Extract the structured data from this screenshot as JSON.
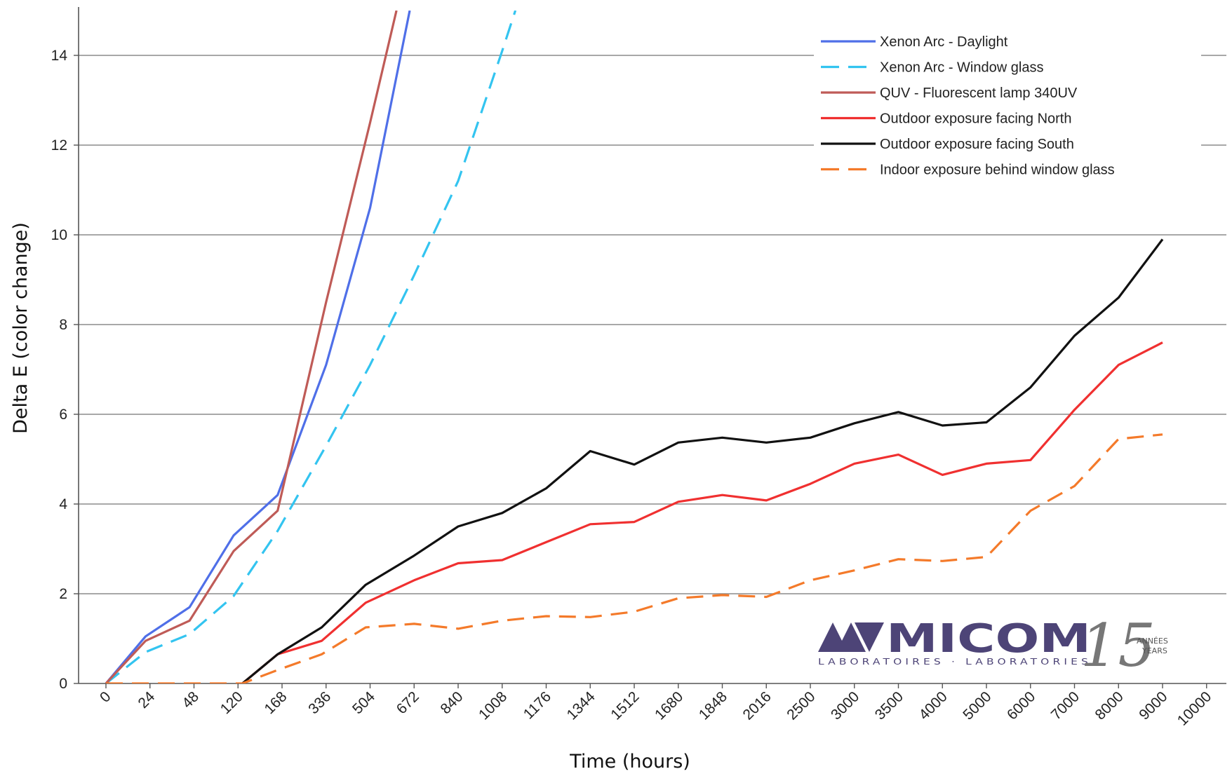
{
  "chart_data": {
    "type": "line",
    "title": "",
    "xlabel": "Time (hours)",
    "ylabel": "Delta E (color change)",
    "ylim": [
      0,
      15
    ],
    "yticks": [
      0,
      2,
      4,
      6,
      8,
      10,
      12,
      14
    ],
    "categories": [
      "0",
      "24",
      "48",
      "120",
      "168",
      "336",
      "504",
      "672",
      "840",
      "1008",
      "1176",
      "1344",
      "1512",
      "1680",
      "1848",
      "2016",
      "2500",
      "3000",
      "3500",
      "4000",
      "5000",
      "6000",
      "7000",
      "8000",
      "9000",
      "10000"
    ],
    "grid": "horizontal",
    "legend_position": "top-right",
    "series": [
      {
        "name": "Xenon Arc - Daylight",
        "color": "#4f6fe8",
        "dash": "solid",
        "points": [
          [
            0,
            0
          ],
          [
            0.9,
            1.05
          ],
          [
            1.9,
            1.7
          ],
          [
            2.9,
            3.3
          ],
          [
            3.9,
            4.2
          ],
          [
            5.0,
            7.1
          ],
          [
            6.0,
            10.6
          ],
          [
            6.9,
            15.0
          ]
        ]
      },
      {
        "name": "Xenon Arc - Window glass",
        "color": "#33c4f0",
        "dash": "dashed",
        "points": [
          [
            0,
            0
          ],
          [
            0.9,
            0.7
          ],
          [
            1.9,
            1.1
          ],
          [
            2.9,
            1.95
          ],
          [
            3.9,
            3.4
          ],
          [
            5.0,
            5.3
          ],
          [
            6.0,
            7.1
          ],
          [
            7.0,
            9.1
          ],
          [
            8.0,
            11.2
          ],
          [
            9.0,
            14.1
          ],
          [
            9.3,
            15.0
          ]
        ]
      },
      {
        "name": "QUV - Fluorescent lamp 340UV",
        "color": "#bf5b57",
        "dash": "solid",
        "points": [
          [
            0,
            0
          ],
          [
            0.9,
            0.95
          ],
          [
            1.9,
            1.4
          ],
          [
            2.9,
            2.95
          ],
          [
            3.9,
            3.85
          ],
          [
            5.0,
            8.5
          ],
          [
            6.0,
            12.5
          ],
          [
            6.6,
            15.0
          ]
        ]
      },
      {
        "name": "Outdoor exposure facing North",
        "color": "#f03030",
        "dash": "solid",
        "points": [
          [
            3.1,
            0
          ],
          [
            3.9,
            0.65
          ],
          [
            4.9,
            0.95
          ],
          [
            5.9,
            1.8
          ],
          [
            7.0,
            2.3
          ],
          [
            8.0,
            2.68
          ],
          [
            9.0,
            2.75
          ],
          [
            10.0,
            3.15
          ],
          [
            11.0,
            3.55
          ],
          [
            12.0,
            3.6
          ],
          [
            13.0,
            4.05
          ],
          [
            14.0,
            4.2
          ],
          [
            15.0,
            4.08
          ],
          [
            16.0,
            4.45
          ],
          [
            17.0,
            4.9
          ],
          [
            18.0,
            5.1
          ],
          [
            19.0,
            4.65
          ],
          [
            20.0,
            4.9
          ],
          [
            21.0,
            4.98
          ],
          [
            22.0,
            6.1
          ],
          [
            23.0,
            7.1
          ],
          [
            24.0,
            7.6
          ]
        ]
      },
      {
        "name": "Outdoor exposure facing South",
        "color": "#111111",
        "dash": "solid",
        "points": [
          [
            3.1,
            0
          ],
          [
            3.9,
            0.65
          ],
          [
            4.9,
            1.25
          ],
          [
            5.9,
            2.2
          ],
          [
            7.0,
            2.85
          ],
          [
            8.0,
            3.5
          ],
          [
            9.0,
            3.8
          ],
          [
            10.0,
            4.35
          ],
          [
            11.0,
            5.18
          ],
          [
            12.0,
            4.88
          ],
          [
            13.0,
            5.37
          ],
          [
            14.0,
            5.48
          ],
          [
            15.0,
            5.37
          ],
          [
            16.0,
            5.48
          ],
          [
            17.0,
            5.8
          ],
          [
            18.0,
            6.05
          ],
          [
            19.0,
            5.75
          ],
          [
            20.0,
            5.82
          ],
          [
            21.0,
            6.6
          ],
          [
            22.0,
            7.75
          ],
          [
            23.0,
            8.6
          ],
          [
            24.0,
            9.9
          ]
        ]
      },
      {
        "name": "Indoor exposure behind window glass",
        "color": "#f47a2a",
        "dash": "dashed",
        "points": [
          [
            0,
            0
          ],
          [
            3.1,
            0
          ],
          [
            3.9,
            0.3
          ],
          [
            4.9,
            0.65
          ],
          [
            5.9,
            1.25
          ],
          [
            7.0,
            1.33
          ],
          [
            8.0,
            1.22
          ],
          [
            9.0,
            1.4
          ],
          [
            10.0,
            1.5
          ],
          [
            11.0,
            1.48
          ],
          [
            12.0,
            1.6
          ],
          [
            13.0,
            1.9
          ],
          [
            14.0,
            1.97
          ],
          [
            15.0,
            1.93
          ],
          [
            16.0,
            2.3
          ],
          [
            17.0,
            2.52
          ],
          [
            18.0,
            2.77
          ],
          [
            19.0,
            2.73
          ],
          [
            20.0,
            2.82
          ],
          [
            21.0,
            3.85
          ],
          [
            22.0,
            4.4
          ],
          [
            23.0,
            5.45
          ],
          [
            24.0,
            5.55
          ]
        ]
      }
    ]
  },
  "logo": {
    "brand": "MICOM",
    "subtitle": "LABORATOIRES · LABORATORIES",
    "anniversary": "15",
    "anniv_fr": "ANNÉES",
    "anniv_en": "YEARS"
  }
}
